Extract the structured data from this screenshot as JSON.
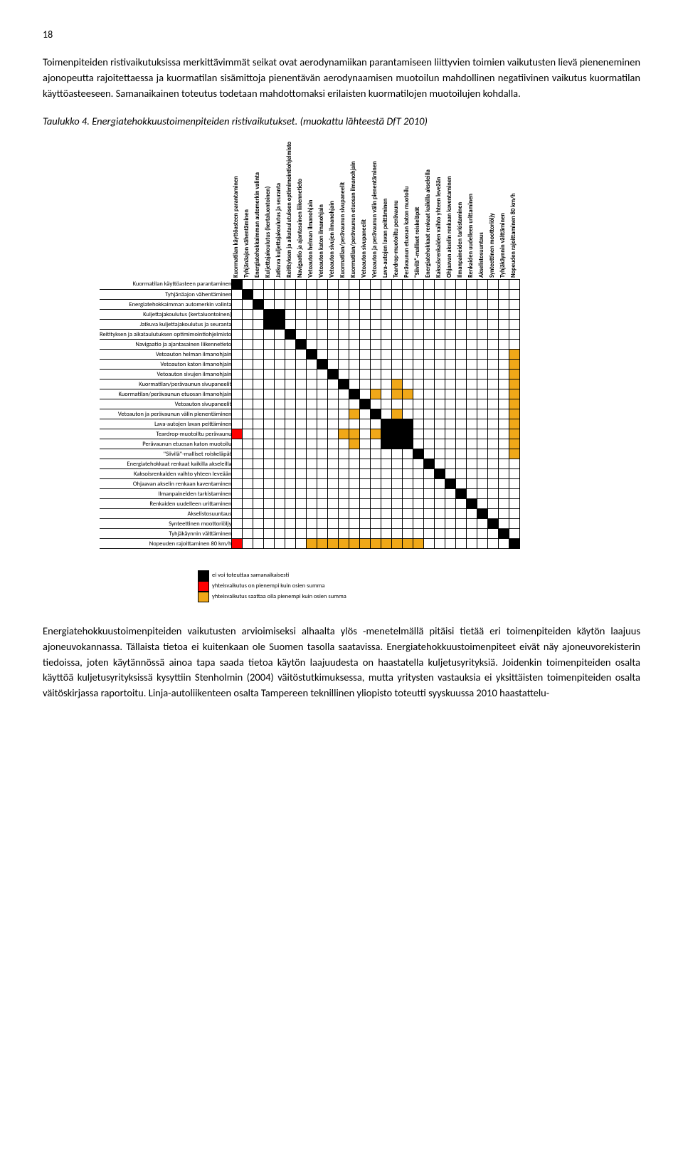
{
  "page_number": "18",
  "intro_para": "Toimenpiteiden ristivaikutuksissa merkittävimmät seikat ovat aerodynamiikan parantamiseen liittyvien toimien vaikutusten lievä pieneneminen ajonopeutta rajoitettaessa ja kuormatilan sisämittoja pienentävän aerodynaamisen muotoilun mahdollinen negatiivinen vaikutus kuormatilan käyttöasteeseen. Samanaikainen toteutus todetaan mahdottomaksi erilaisten kuormatilojen muotoilujen kohdalla.",
  "caption": "Taulukko 4. Energiatehokkuustoimenpiteiden ristivaikutukset. (muokattu lähteestä DfT 2010)",
  "labels": [
    "Kuormatilan käyttöasteen parantaminen",
    "Tyhjänäajon vähentäminen",
    "Energiatehokkaimman automerkin valinta",
    "Kuljettajakoulutus (kertaluontoinen)",
    "Jatkuva kuljettajakoulutus ja seuranta",
    "Reitityksen ja aikataulutuksen optimimointiohjelmisto",
    "Navigaatio ja ajantasainen liikennetieto",
    "Vetoauton helman ilmanohjain",
    "Vetoauton katon ilmanohjain",
    "Vetoauton sivujen ilmanohjain",
    "Kuormatilan/perävaunun sivupaneelit",
    "Kuormatilan/perävaunun etuosan ilmanohjain",
    "Vetoauton sivupaneelit",
    "Vetoauton ja perävaunun välin pienentäminen",
    "Lava-autojen lavan peittäminen",
    "Teardrop-muotoiltu perävaunu",
    "Perävaunun etuosan katon muotoilu",
    "\"Siivilä\"-malliset roiskeläpät",
    "Energiatehokkaat renkaat kaikilla akseleilla",
    "Kaksoisrenkaiden vaihto yhteen leveään",
    "Ohjaavan akselin renkaan kaventaminen",
    "Ilmanpaineiden tarkistaminen",
    "Renkaiden uudelleen urittaminen",
    "Akselistosuuntaus",
    "Synteettinen moottoriöljy",
    "Tyhjäkäynnin välttäminen",
    "Nopeuden rajoittaminen 80 km/h"
  ],
  "colors": {
    "diag": "#000000",
    "black": "#000000",
    "orange": "#f0a818",
    "red": "#ff0000",
    "blank": "#ffffff"
  },
  "grid": [
    [
      "diag",
      "",
      "",
      "",
      "",
      "",
      "",
      "",
      "",
      "",
      "",
      "",
      "",
      "",
      "",
      "",
      "",
      "",
      "",
      "",
      "",
      "",
      "",
      "",
      "",
      "",
      ""
    ],
    [
      "",
      "diag",
      "",
      "",
      "",
      "",
      "",
      "",
      "",
      "",
      "",
      "",
      "",
      "",
      "",
      "",
      "",
      "",
      "",
      "",
      "",
      "",
      "",
      "",
      "",
      "",
      ""
    ],
    [
      "",
      "",
      "diag",
      "",
      "",
      "",
      "",
      "",
      "",
      "",
      "",
      "",
      "",
      "",
      "",
      "",
      "",
      "",
      "",
      "",
      "",
      "",
      "",
      "",
      "",
      "",
      ""
    ],
    [
      "",
      "",
      "",
      "diag",
      "black",
      "",
      "",
      "",
      "",
      "",
      "",
      "",
      "",
      "",
      "",
      "",
      "",
      "",
      "",
      "",
      "",
      "",
      "",
      "",
      "",
      "",
      ""
    ],
    [
      "",
      "",
      "",
      "black",
      "diag",
      "",
      "",
      "",
      "",
      "",
      "",
      "",
      "",
      "",
      "",
      "",
      "",
      "",
      "",
      "",
      "",
      "",
      "",
      "",
      "",
      "",
      ""
    ],
    [
      "",
      "",
      "",
      "",
      "",
      "diag",
      "",
      "",
      "",
      "",
      "",
      "",
      "",
      "",
      "",
      "",
      "",
      "",
      "",
      "",
      "",
      "",
      "",
      "",
      "",
      "",
      ""
    ],
    [
      "",
      "",
      "",
      "",
      "",
      "",
      "diag",
      "",
      "",
      "",
      "",
      "",
      "",
      "",
      "",
      "",
      "",
      "",
      "",
      "",
      "",
      "",
      "",
      "",
      "",
      "",
      ""
    ],
    [
      "",
      "",
      "",
      "",
      "",
      "",
      "",
      "diag",
      "",
      "",
      "",
      "",
      "",
      "",
      "",
      "",
      "",
      "",
      "",
      "",
      "",
      "",
      "",
      "",
      "",
      "",
      "orange"
    ],
    [
      "",
      "",
      "",
      "",
      "",
      "",
      "",
      "",
      "diag",
      "",
      "",
      "",
      "",
      "",
      "",
      "",
      "",
      "",
      "",
      "",
      "",
      "",
      "",
      "",
      "",
      "",
      "orange"
    ],
    [
      "",
      "",
      "",
      "",
      "",
      "",
      "",
      "",
      "",
      "diag",
      "",
      "",
      "",
      "",
      "",
      "",
      "",
      "",
      "",
      "",
      "",
      "",
      "",
      "",
      "",
      "",
      "orange"
    ],
    [
      "",
      "",
      "",
      "",
      "",
      "",
      "",
      "",
      "",
      "",
      "diag",
      "",
      "",
      "",
      "",
      "orange",
      "",
      "",
      "",
      "",
      "",
      "",
      "",
      "",
      "",
      "",
      "orange"
    ],
    [
      "",
      "",
      "",
      "",
      "",
      "",
      "",
      "",
      "",
      "",
      "",
      "diag",
      "",
      "orange",
      "",
      "orange",
      "orange",
      "",
      "",
      "",
      "",
      "",
      "",
      "",
      "",
      "",
      "orange"
    ],
    [
      "",
      "",
      "",
      "",
      "",
      "",
      "",
      "",
      "",
      "",
      "",
      "",
      "diag",
      "",
      "",
      "",
      "",
      "",
      "",
      "",
      "",
      "",
      "",
      "",
      "",
      "",
      "orange"
    ],
    [
      "",
      "",
      "",
      "",
      "",
      "",
      "",
      "",
      "",
      "",
      "",
      "orange",
      "",
      "diag",
      "",
      "orange",
      "",
      "",
      "",
      "",
      "",
      "",
      "",
      "",
      "",
      "",
      "orange"
    ],
    [
      "",
      "",
      "",
      "",
      "",
      "",
      "",
      "",
      "",
      "",
      "",
      "",
      "",
      "",
      "diag",
      "black",
      "black",
      "",
      "",
      "",
      "",
      "",
      "",
      "",
      "",
      "",
      "orange"
    ],
    [
      "red",
      "",
      "",
      "",
      "",
      "",
      "",
      "",
      "",
      "",
      "orange",
      "orange",
      "",
      "orange",
      "black",
      "diag",
      "black",
      "",
      "",
      "",
      "",
      "",
      "",
      "",
      "",
      "",
      "orange"
    ],
    [
      "",
      "",
      "",
      "",
      "",
      "",
      "",
      "",
      "",
      "",
      "",
      "orange",
      "",
      "",
      "black",
      "black",
      "diag",
      "",
      "",
      "",
      "",
      "",
      "",
      "",
      "",
      "",
      "orange"
    ],
    [
      "",
      "",
      "",
      "",
      "",
      "",
      "",
      "",
      "",
      "",
      "",
      "",
      "",
      "",
      "",
      "",
      "",
      "diag",
      "",
      "",
      "",
      "",
      "",
      "",
      "",
      "",
      "orange"
    ],
    [
      "",
      "",
      "",
      "",
      "",
      "",
      "",
      "",
      "",
      "",
      "",
      "",
      "",
      "",
      "",
      "",
      "",
      "",
      "diag",
      "",
      "",
      "",
      "",
      "",
      "",
      "",
      ""
    ],
    [
      "",
      "",
      "",
      "",
      "",
      "",
      "",
      "",
      "",
      "",
      "",
      "",
      "",
      "",
      "",
      "",
      "",
      "",
      "",
      "diag",
      "",
      "",
      "",
      "",
      "",
      "",
      ""
    ],
    [
      "",
      "",
      "",
      "",
      "",
      "",
      "",
      "",
      "",
      "",
      "",
      "",
      "",
      "",
      "",
      "",
      "",
      "",
      "",
      "",
      "diag",
      "",
      "",
      "",
      "",
      "",
      ""
    ],
    [
      "",
      "",
      "",
      "",
      "",
      "",
      "",
      "",
      "",
      "",
      "",
      "",
      "",
      "",
      "",
      "",
      "",
      "",
      "",
      "",
      "",
      "diag",
      "",
      "",
      "",
      "",
      ""
    ],
    [
      "",
      "",
      "",
      "",
      "",
      "",
      "",
      "",
      "",
      "",
      "",
      "",
      "",
      "",
      "",
      "",
      "",
      "",
      "",
      "",
      "",
      "",
      "diag",
      "",
      "",
      "",
      ""
    ],
    [
      "",
      "",
      "",
      "",
      "",
      "",
      "",
      "",
      "",
      "",
      "",
      "",
      "",
      "",
      "",
      "",
      "",
      "",
      "",
      "",
      "",
      "",
      "",
      "diag",
      "",
      "",
      ""
    ],
    [
      "",
      "",
      "",
      "",
      "",
      "",
      "",
      "",
      "",
      "",
      "",
      "",
      "",
      "",
      "",
      "",
      "",
      "",
      "",
      "",
      "",
      "",
      "",
      "",
      "diag",
      "",
      ""
    ],
    [
      "",
      "",
      "",
      "",
      "",
      "",
      "",
      "",
      "",
      "",
      "",
      "",
      "",
      "",
      "",
      "",
      "",
      "",
      "",
      "",
      "",
      "",
      "",
      "",
      "",
      "diag",
      ""
    ],
    [
      "red",
      "",
      "",
      "",
      "",
      "",
      "",
      "orange",
      "orange",
      "orange",
      "orange",
      "orange",
      "orange",
      "orange",
      "orange",
      "orange",
      "orange",
      "orange",
      "",
      "",
      "",
      "",
      "",
      "",
      "",
      "",
      "diag"
    ]
  ],
  "legend": [
    {
      "color": "black",
      "text": "ei voi toteuttaa samanaikaisesti"
    },
    {
      "color": "red",
      "text": "yhteisvaikutus on pienempi kuin osien summa"
    },
    {
      "color": "orange",
      "text": "yhteisvaikutus saattaa olla pienempi kuin osien summa"
    }
  ],
  "outro_para": "Energiatehokkuustoimenpiteiden vaikutusten arvioimiseksi alhaalta ylös -menetelmällä pitäisi tietää eri toimenpiteiden käytön laajuus ajoneuvokannassa. Tällaista tietoa ei kuitenkaan ole Suomen tasolla saatavissa. Energiatehokkuustoimenpiteet eivät näy ajoneuvorekisterin tiedoissa, joten käytännössä ainoa tapa saada tietoa käytön laajuudesta on haastatella kuljetusyrityksiä. Joidenkin toimenpiteiden osalta käyttöä kuljetusyrityksissä kysyttiin Stenholmin (2004) väitöstutkimuksessa, mutta yritysten vastauksia ei yksittäisten toimenpiteiden osalta väitöskirjassa raportoitu. Linja-autoliikenteen osalta Tampereen teknillinen yliopisto toteutti syyskuussa 2010 haastattelu-"
}
